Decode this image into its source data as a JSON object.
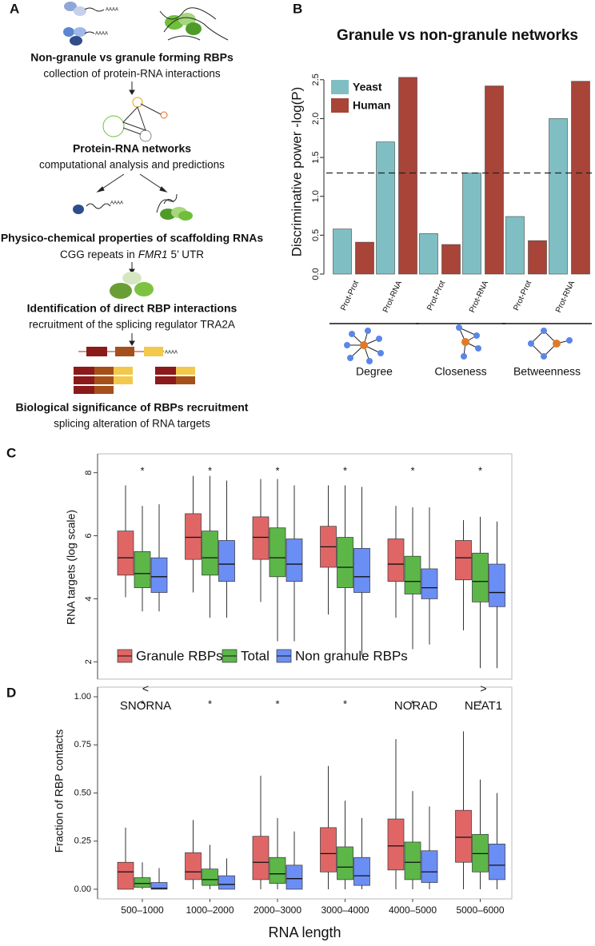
{
  "panel_labels": [
    "A",
    "B",
    "C",
    "D"
  ],
  "workflow": {
    "poly_a": "AAAA",
    "steps": [
      {
        "title": "Non-granule vs granule forming RBPs",
        "subtitle": "collection of protein-RNA interactions"
      },
      {
        "title": "Protein-RNA networks",
        "subtitle": "computational analysis and predictions"
      },
      {
        "title": "Physico-chemical properties of scaffolding RNAs",
        "subtitle_parts": [
          "CGG repeats in",
          "FMR1",
          "5’ UTR"
        ]
      },
      {
        "title": "Identification of direct RBP interactions",
        "subtitle": "recruitment of the splicing regulator TRA2A"
      },
      {
        "title": "Biological significance of RBPs recruitment",
        "subtitle": "splicing alteration of RNA targets"
      }
    ]
  },
  "chart_data": [
    {
      "type": "bar",
      "title": "Granule vs non-granule networks",
      "ylabel": "Discriminative power -log(P)",
      "categories": [
        "Prot-Prot",
        "Prot-RNA",
        "Prot-Prot",
        "Prot-RNA",
        "Prot-Prot",
        "Prot-RNA"
      ],
      "groups": [
        "Degree",
        "Closeness",
        "Betweenness"
      ],
      "series": [
        {
          "name": "Yeast",
          "color": "#7fbfc4",
          "values": [
            0.58,
            1.7,
            0.52,
            1.3,
            0.74,
            2.0
          ]
        },
        {
          "name": "Human",
          "color": "#a84438",
          "values": [
            0.41,
            2.53,
            0.38,
            2.42,
            0.43,
            2.48
          ]
        }
      ],
      "ylim": [
        0,
        2.58
      ],
      "yticks": [
        {
          "value": 0,
          "label": "0.0"
        },
        0.5,
        {
          "value": 1,
          "label": "1.0"
        },
        1.5,
        {
          "value": 2,
          "label": "2.0"
        },
        2.5
      ],
      "reference_line": 1.3,
      "legend": "top-left"
    },
    {
      "type": "box",
      "ylabel": "RNA targets (log scale)",
      "categories": [
        null,
        null,
        null,
        null,
        null,
        null
      ],
      "significance": [
        "*",
        "*",
        "*",
        "*",
        "*",
        "*"
      ],
      "series": [
        {
          "name": "Granule RBPs",
          "color": "#e06666",
          "values": [
            [
              4.05,
              4.75,
              5.3,
              6.15,
              7.6
            ],
            [
              4.2,
              5.25,
              5.95,
              6.7,
              7.9
            ],
            [
              3.9,
              5.25,
              5.95,
              6.6,
              7.8
            ],
            [
              3.5,
              5.0,
              5.65,
              6.3,
              7.6
            ],
            [
              3.4,
              4.55,
              5.1,
              5.9,
              6.95
            ],
            [
              3.0,
              4.6,
              5.3,
              5.85,
              6.5
            ]
          ]
        },
        {
          "name": "Total",
          "color": "#5cb748",
          "values": [
            [
              3.6,
              4.35,
              4.8,
              5.5,
              6.95
            ],
            [
              3.4,
              4.75,
              5.3,
              6.15,
              7.9
            ],
            [
              2.65,
              4.7,
              5.3,
              6.25,
              7.8
            ],
            [
              2.2,
              4.35,
              5.0,
              5.95,
              7.6
            ],
            [
              2.4,
              4.15,
              4.55,
              5.35,
              6.9
            ],
            [
              1.8,
              3.9,
              4.55,
              5.45,
              6.6
            ]
          ]
        },
        {
          "name": "Non granule RBPs",
          "color": "#6b8ef5",
          "values": [
            [
              3.6,
              4.2,
              4.7,
              5.3,
              7.0
            ],
            [
              3.4,
              4.55,
              5.1,
              5.85,
              7.75
            ],
            [
              2.65,
              4.55,
              5.1,
              5.9,
              7.6
            ],
            [
              2.2,
              4.2,
              4.7,
              5.6,
              7.55
            ],
            [
              2.55,
              4.0,
              4.35,
              4.95,
              6.9
            ],
            [
              1.8,
              3.75,
              4.2,
              5.1,
              6.45
            ]
          ]
        }
      ],
      "ylim": [
        1.45,
        8.6
      ],
      "yticks": [
        2,
        4,
        6,
        8
      ],
      "legend": "bottom"
    },
    {
      "type": "box",
      "ylabel": "Fraction of RBP contacts",
      "xlabel": "RNA length",
      "categories": [
        "500–1000",
        "1000–2000",
        "2000–3000",
        "3000–4000",
        "4000–5000",
        "5000–6000"
      ],
      "significance": [
        "*",
        "*",
        "*",
        "*",
        "*",
        "*"
      ],
      "rna_labels": [
        {
          "marker": "<",
          "name": "SNORNA"
        },
        null,
        null,
        null,
        {
          "name": "NORAD"
        },
        {
          "marker": ">",
          "name": "NEAT1"
        }
      ],
      "series": [
        {
          "name": "Granule RBPs",
          "color": "#e06666",
          "values": [
            [
              0,
              0,
              0.09,
              0.14,
              0.32
            ],
            [
              0,
              0.05,
              0.09,
              0.19,
              0.36
            ],
            [
              0,
              0.05,
              0.14,
              0.275,
              0.59
            ],
            [
              0,
              0.09,
              0.185,
              0.32,
              0.64
            ],
            [
              0,
              0.1,
              0.225,
              0.365,
              0.78
            ],
            [
              0,
              0.14,
              0.27,
              0.41,
              0.82
            ]
          ]
        },
        {
          "name": "Total",
          "color": "#5cb748",
          "values": [
            [
              0,
              0.01,
              0.03,
              0.06,
              0.14
            ],
            [
              0,
              0.02,
              0.05,
              0.105,
              0.23
            ],
            [
              0,
              0.03,
              0.08,
              0.165,
              0.37
            ],
            [
              0,
              0.05,
              0.115,
              0.22,
              0.46
            ],
            [
              0,
              0.05,
              0.14,
              0.245,
              0.51
            ],
            [
              0,
              0.09,
              0.185,
              0.285,
              0.57
            ]
          ]
        },
        {
          "name": "Non granule RBPs",
          "color": "#6b8ef5",
          "values": [
            [
              0,
              0,
              0.005,
              0.035,
              0.11
            ],
            [
              0,
              0,
              0.025,
              0.07,
              0.16
            ],
            [
              0,
              0,
              0.055,
              0.125,
              0.3
            ],
            [
              0,
              0.02,
              0.07,
              0.165,
              0.37
            ],
            [
              0,
              0.035,
              0.09,
              0.2,
              0.43
            ],
            [
              0,
              0.05,
              0.125,
              0.235,
              0.5
            ]
          ]
        }
      ],
      "ylim": [
        -0.05,
        1.05
      ],
      "yticks": [
        {
          "value": 0,
          "label": "0.00"
        },
        0.25,
        {
          "value": 0.5,
          "label": "0.50"
        },
        0.75,
        {
          "value": 1,
          "label": "1.00"
        }
      ]
    }
  ]
}
